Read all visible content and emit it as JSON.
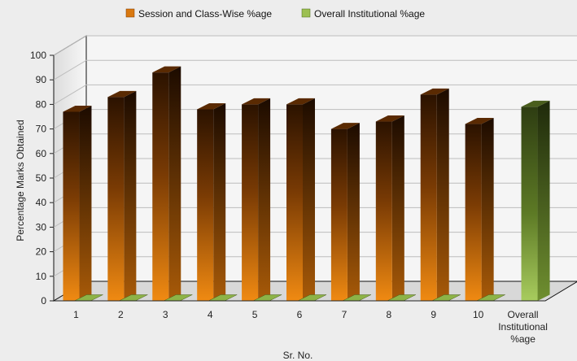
{
  "chart_data": {
    "type": "bar",
    "categories": [
      "1",
      "2",
      "3",
      "4",
      "5",
      "6",
      "7",
      "8",
      "9",
      "10",
      "Overall Institutional %age"
    ],
    "series": [
      {
        "name": "Session and Class-Wise %age",
        "values": [
          77,
          83,
          93,
          78,
          80,
          80,
          70,
          73,
          84,
          72,
          null
        ],
        "color": "#d9780f",
        "dark_color": "#2b1200"
      },
      {
        "name": "Overall Institutional %age",
        "values": [
          0,
          0,
          0,
          0,
          0,
          0,
          0,
          0,
          0,
          0,
          79
        ],
        "color": "#9cc052",
        "dark_color": "#2e3d12"
      }
    ],
    "xlabel": "Sr. No.",
    "ylabel": "Percentage Marks Obtained",
    "ylim": [
      0,
      100
    ],
    "yticks": [
      0,
      10,
      20,
      30,
      40,
      50,
      60,
      70,
      80,
      90,
      100
    ],
    "grid": true,
    "legend_position": "top-center"
  }
}
